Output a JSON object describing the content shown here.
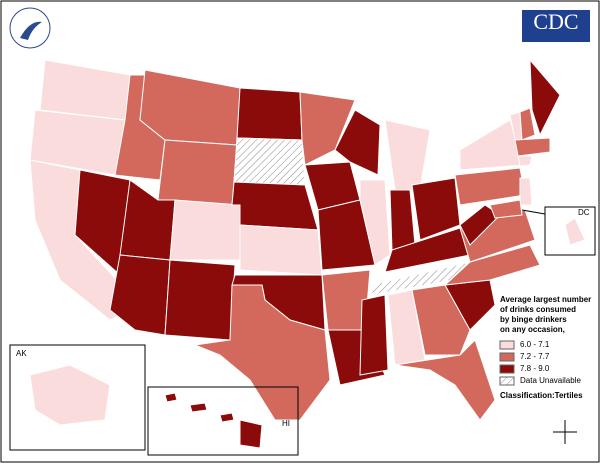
{
  "logo": "CDC",
  "legend": {
    "title_lines": [
      "Average largest number",
      "of drinks consumed",
      "by binge drinkers",
      "on any occasion,"
    ],
    "classes": [
      {
        "label": "6.0 - 7.1",
        "color": "#fadcdc"
      },
      {
        "label": "7.2 - 7.7",
        "color": "#d2695c"
      },
      {
        "label": "7.8 - 9.0",
        "color": "#8b0a0a"
      },
      {
        "label": "Data Unavailable",
        "color": "#ffffff",
        "hatched": true
      }
    ],
    "note": "Classification:Tertiles"
  },
  "insets": {
    "alaska": "AK",
    "hawaii": "HI",
    "district": "DC"
  }
}
